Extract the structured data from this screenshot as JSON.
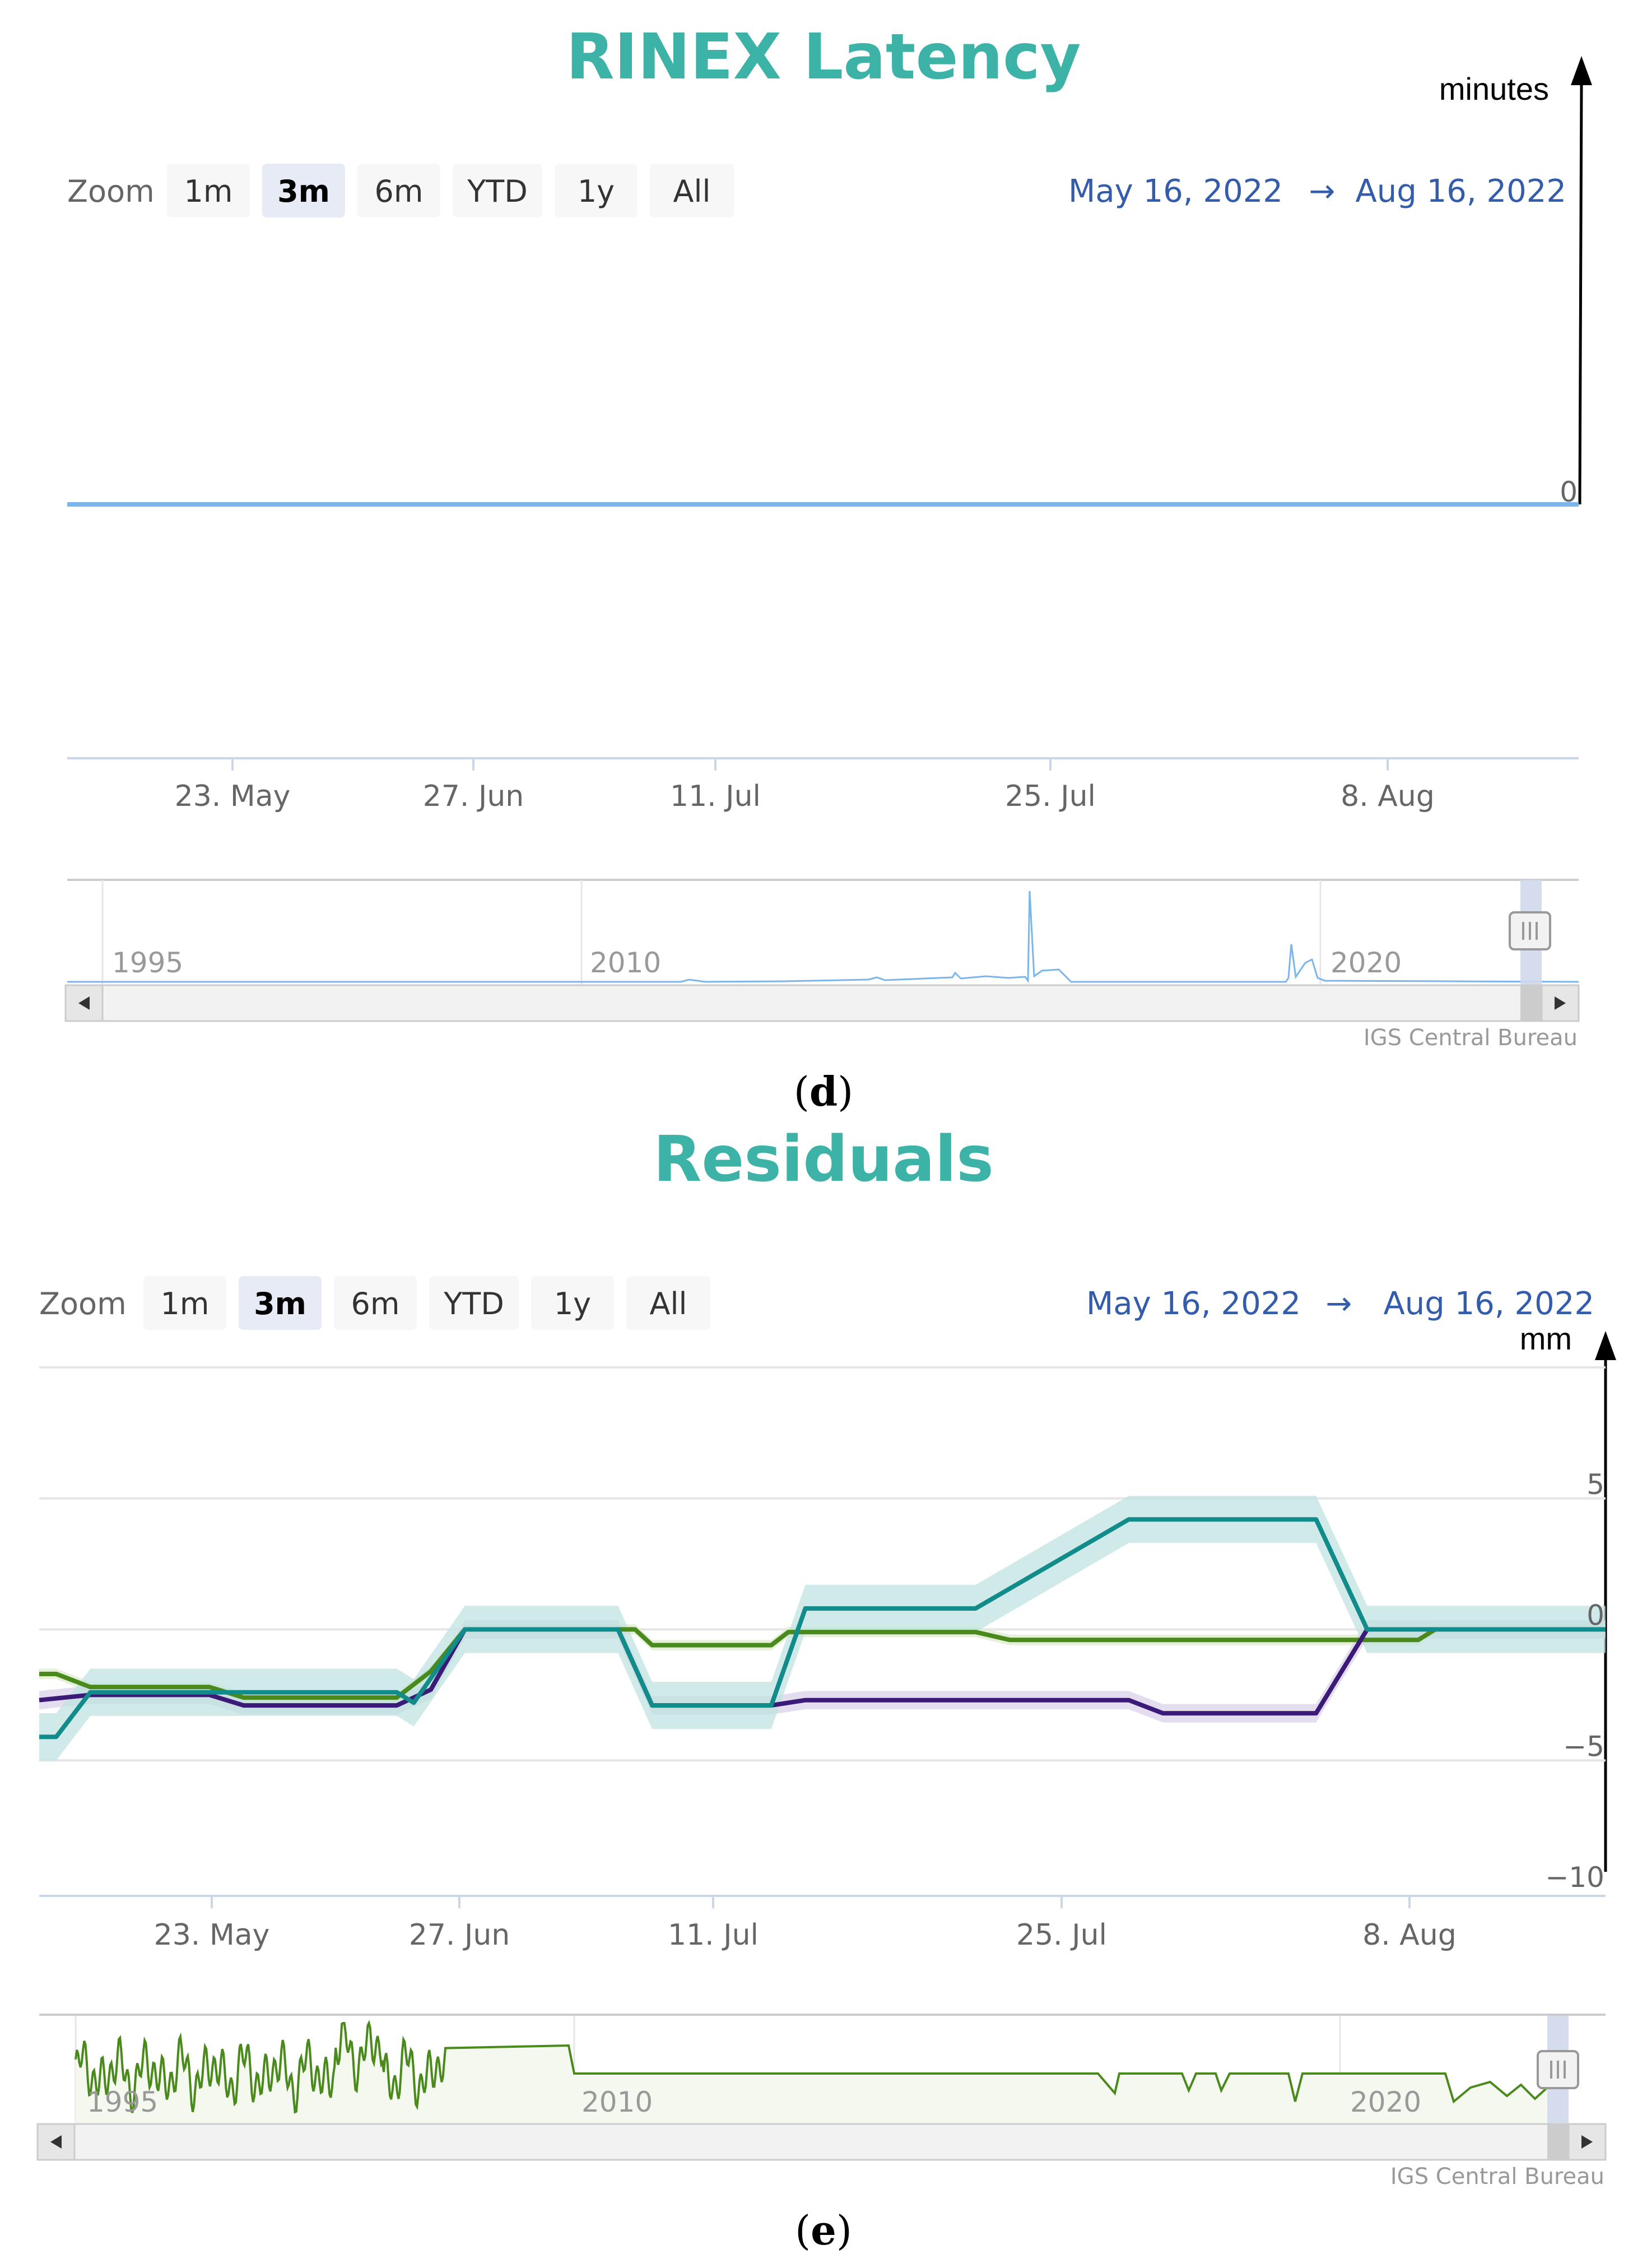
{
  "colors": {
    "title": "#3cb3a6",
    "latency_line": "#7cb5ec",
    "residual_green": "#4a8a1c",
    "residual_purple": "#3b1a78",
    "residual_teal": "#128b8b",
    "band_teal": "#bfe3e0",
    "band_purple": "#ddd4ec",
    "range_text": "#335cad"
  },
  "panel_d": {
    "title": "RINEX Latency",
    "zoom_label": "Zoom",
    "zoom_buttons": [
      "1m",
      "3m",
      "6m",
      "YTD",
      "1y",
      "All"
    ],
    "zoom_selected": "3m",
    "range_from": "May 16, 2022",
    "range_arrow": "→",
    "range_to": "Aug 16, 2022",
    "unit_label": "minutes",
    "caption_open": "(",
    "caption_letter": "d",
    "caption_close": ")",
    "credit": "IGS Central Bureau",
    "navigator_labels": [
      "1995",
      "2010",
      "2020"
    ]
  },
  "panel_e": {
    "title": "Residuals",
    "zoom_label": "Zoom",
    "zoom_buttons": [
      "1m",
      "3m",
      "6m",
      "YTD",
      "1y",
      "All"
    ],
    "zoom_selected": "3m",
    "range_from": "May 16, 2022",
    "range_arrow": "→",
    "range_to": "Aug 16, 2022",
    "unit_label": "mm",
    "caption_open": "(",
    "caption_letter": "e",
    "caption_close": ")",
    "credit": "IGS Central Bureau",
    "navigator_labels": [
      "1995",
      "2010",
      "2020"
    ]
  },
  "chart_data": [
    {
      "type": "line",
      "title": "RINEX Latency",
      "ylabel": "minutes",
      "xlabel": "",
      "x_ticks": [
        "23. May",
        "27. Jun",
        "11. Jul",
        "25. Jul",
        "8. Aug"
      ],
      "y_ticks": [
        "0"
      ],
      "grid": false,
      "series": [
        {
          "x": [
            "May 16, 2022",
            "Aug 16, 2022"
          ],
          "values": [
            0,
            0
          ]
        }
      ]
    },
    {
      "type": "line",
      "title": "Residuals",
      "ylabel": "mm",
      "xlabel": "",
      "x_ticks": [
        "23. May",
        "27. Jun",
        "11. Jul",
        "25. Jul",
        "8. Aug"
      ],
      "y_ticks": [
        "5",
        "0",
        "−5",
        "−10"
      ],
      "ylim": [
        -10,
        10
      ],
      "grid": true,
      "series": [
        {
          "color": "green",
          "x": [
            0,
            1,
            3,
            10,
            12,
            21,
            23,
            25,
            34,
            35,
            36,
            43,
            44,
            55,
            57,
            58,
            59,
            60,
            61,
            72,
            73,
            74,
            75,
            78,
            81,
            82,
            92
          ],
          "values": [
            -1.7,
            -1.7,
            -2.2,
            -2.2,
            -2.6,
            -2.6,
            -1.6,
            0,
            0,
            0,
            -0.6,
            -0.6,
            -0.1,
            -0.1,
            -0.4,
            -0.4,
            -0.4,
            -0.4,
            -0.4,
            -0.4,
            -0.4,
            -0.4,
            -0.4,
            -0.4,
            -0.4,
            0,
            0
          ]
        },
        {
          "color": "purple",
          "x": [
            0,
            3,
            10,
            12,
            21,
            23,
            25,
            34,
            36,
            43,
            45,
            53,
            55,
            64,
            66,
            72,
            74,
            75,
            78,
            92
          ],
          "values": [
            -2.7,
            -2.5,
            -2.5,
            -2.9,
            -2.9,
            -2.3,
            0,
            0,
            -2.9,
            -2.9,
            -2.7,
            -2.7,
            -2.7,
            -2.7,
            -3.2,
            -3.2,
            -3.2,
            -3.2,
            0,
            0
          ]
        },
        {
          "color": "teal",
          "x": [
            0,
            1,
            3,
            10,
            12,
            21,
            22,
            25,
            34,
            36,
            43,
            45,
            53,
            54,
            55,
            64,
            66,
            72,
            74,
            75,
            78,
            92
          ],
          "values": [
            -4.1,
            -4.1,
            -2.4,
            -2.4,
            -2.4,
            -2.4,
            -2.8,
            0,
            0,
            -2.9,
            -2.9,
            0.8,
            0.8,
            0.8,
            0.8,
            4.2,
            4.2,
            4.2,
            4.2,
            4.2,
            0,
            0
          ]
        }
      ]
    }
  ]
}
